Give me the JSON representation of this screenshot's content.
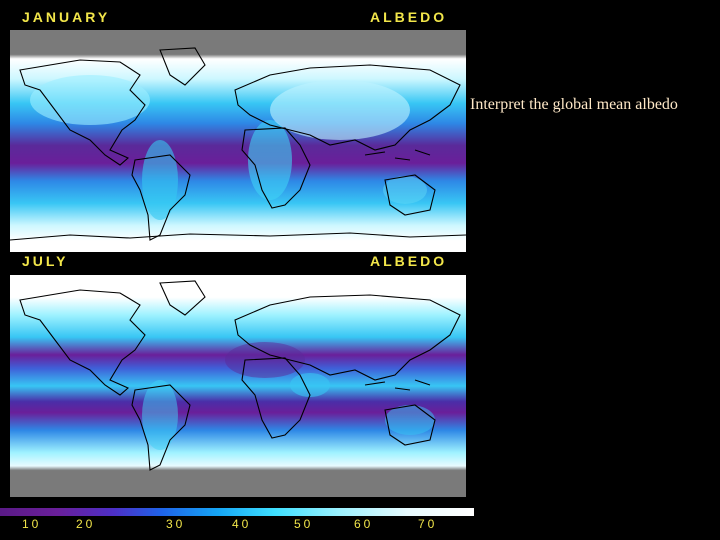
{
  "maps": {
    "january": {
      "month_label": "JANUARY",
      "variable_label": "ALBEDO"
    },
    "july": {
      "month_label": "JULY",
      "variable_label": "ALBEDO"
    }
  },
  "caption": "Interpret the global mean albedo",
  "colorbar": {
    "ticks": [
      "10",
      "20",
      "30",
      "40",
      "50",
      "60",
      "70"
    ],
    "colors": [
      "#5a1a86",
      "#4d2fc7",
      "#16a6f5",
      "#3fe0ff",
      "#9ff2ff",
      "#ffffff"
    ]
  },
  "colors": {
    "label": "#f2e64a",
    "caption": "#ffe9c8",
    "missing_data": "#7a7a7a",
    "coastline": "#000000"
  }
}
